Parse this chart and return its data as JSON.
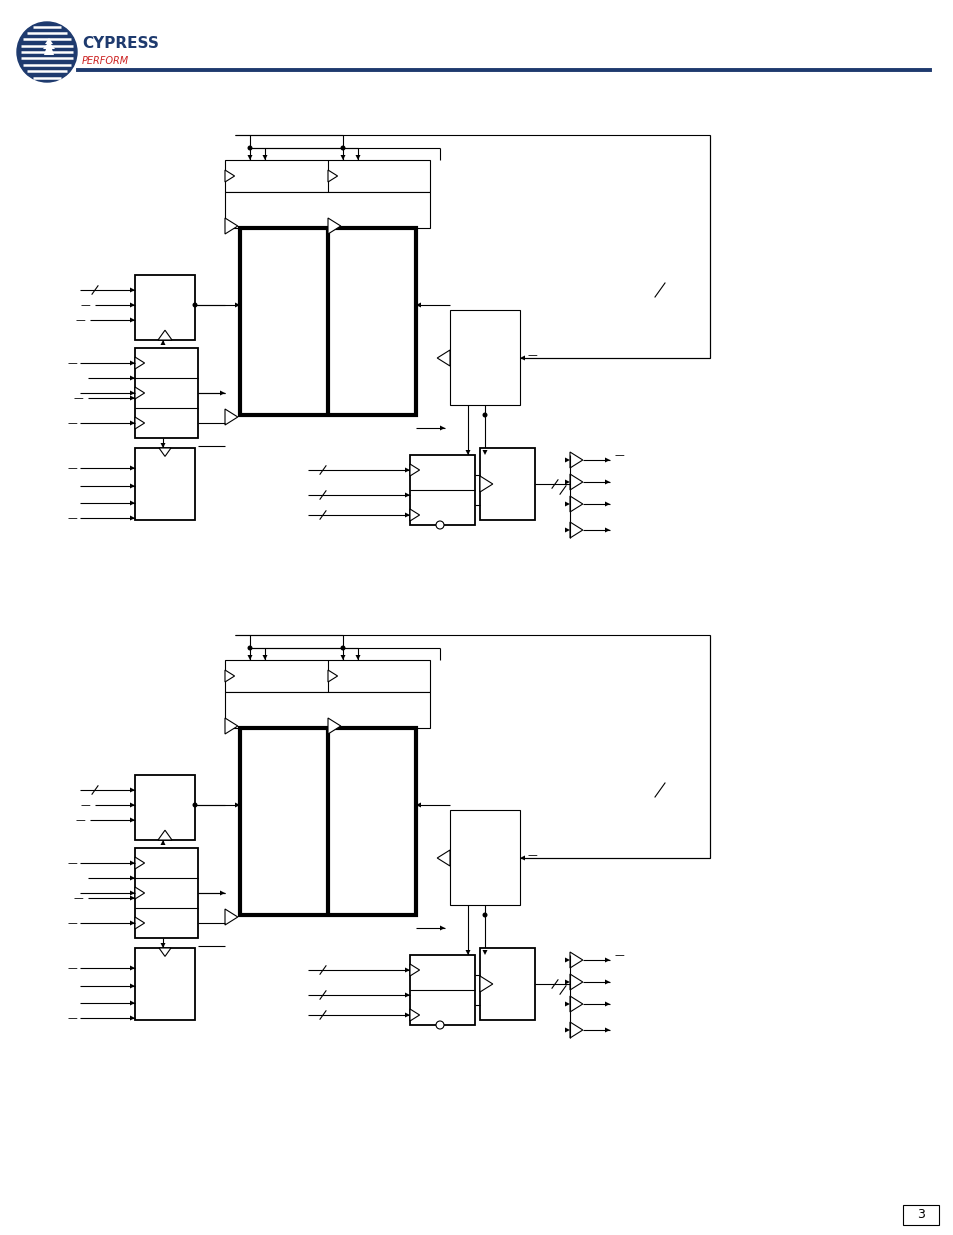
{
  "bg_color": "#ffffff",
  "line_color": "#000000",
  "header_line_color": "#1e3a6e",
  "logo_color": "#1e3a6e",
  "logo_perform_color": "#cc2222",
  "logo_text_cypress": "CYPRESS",
  "logo_text_perform": "PERFORM",
  "page_number": "3"
}
